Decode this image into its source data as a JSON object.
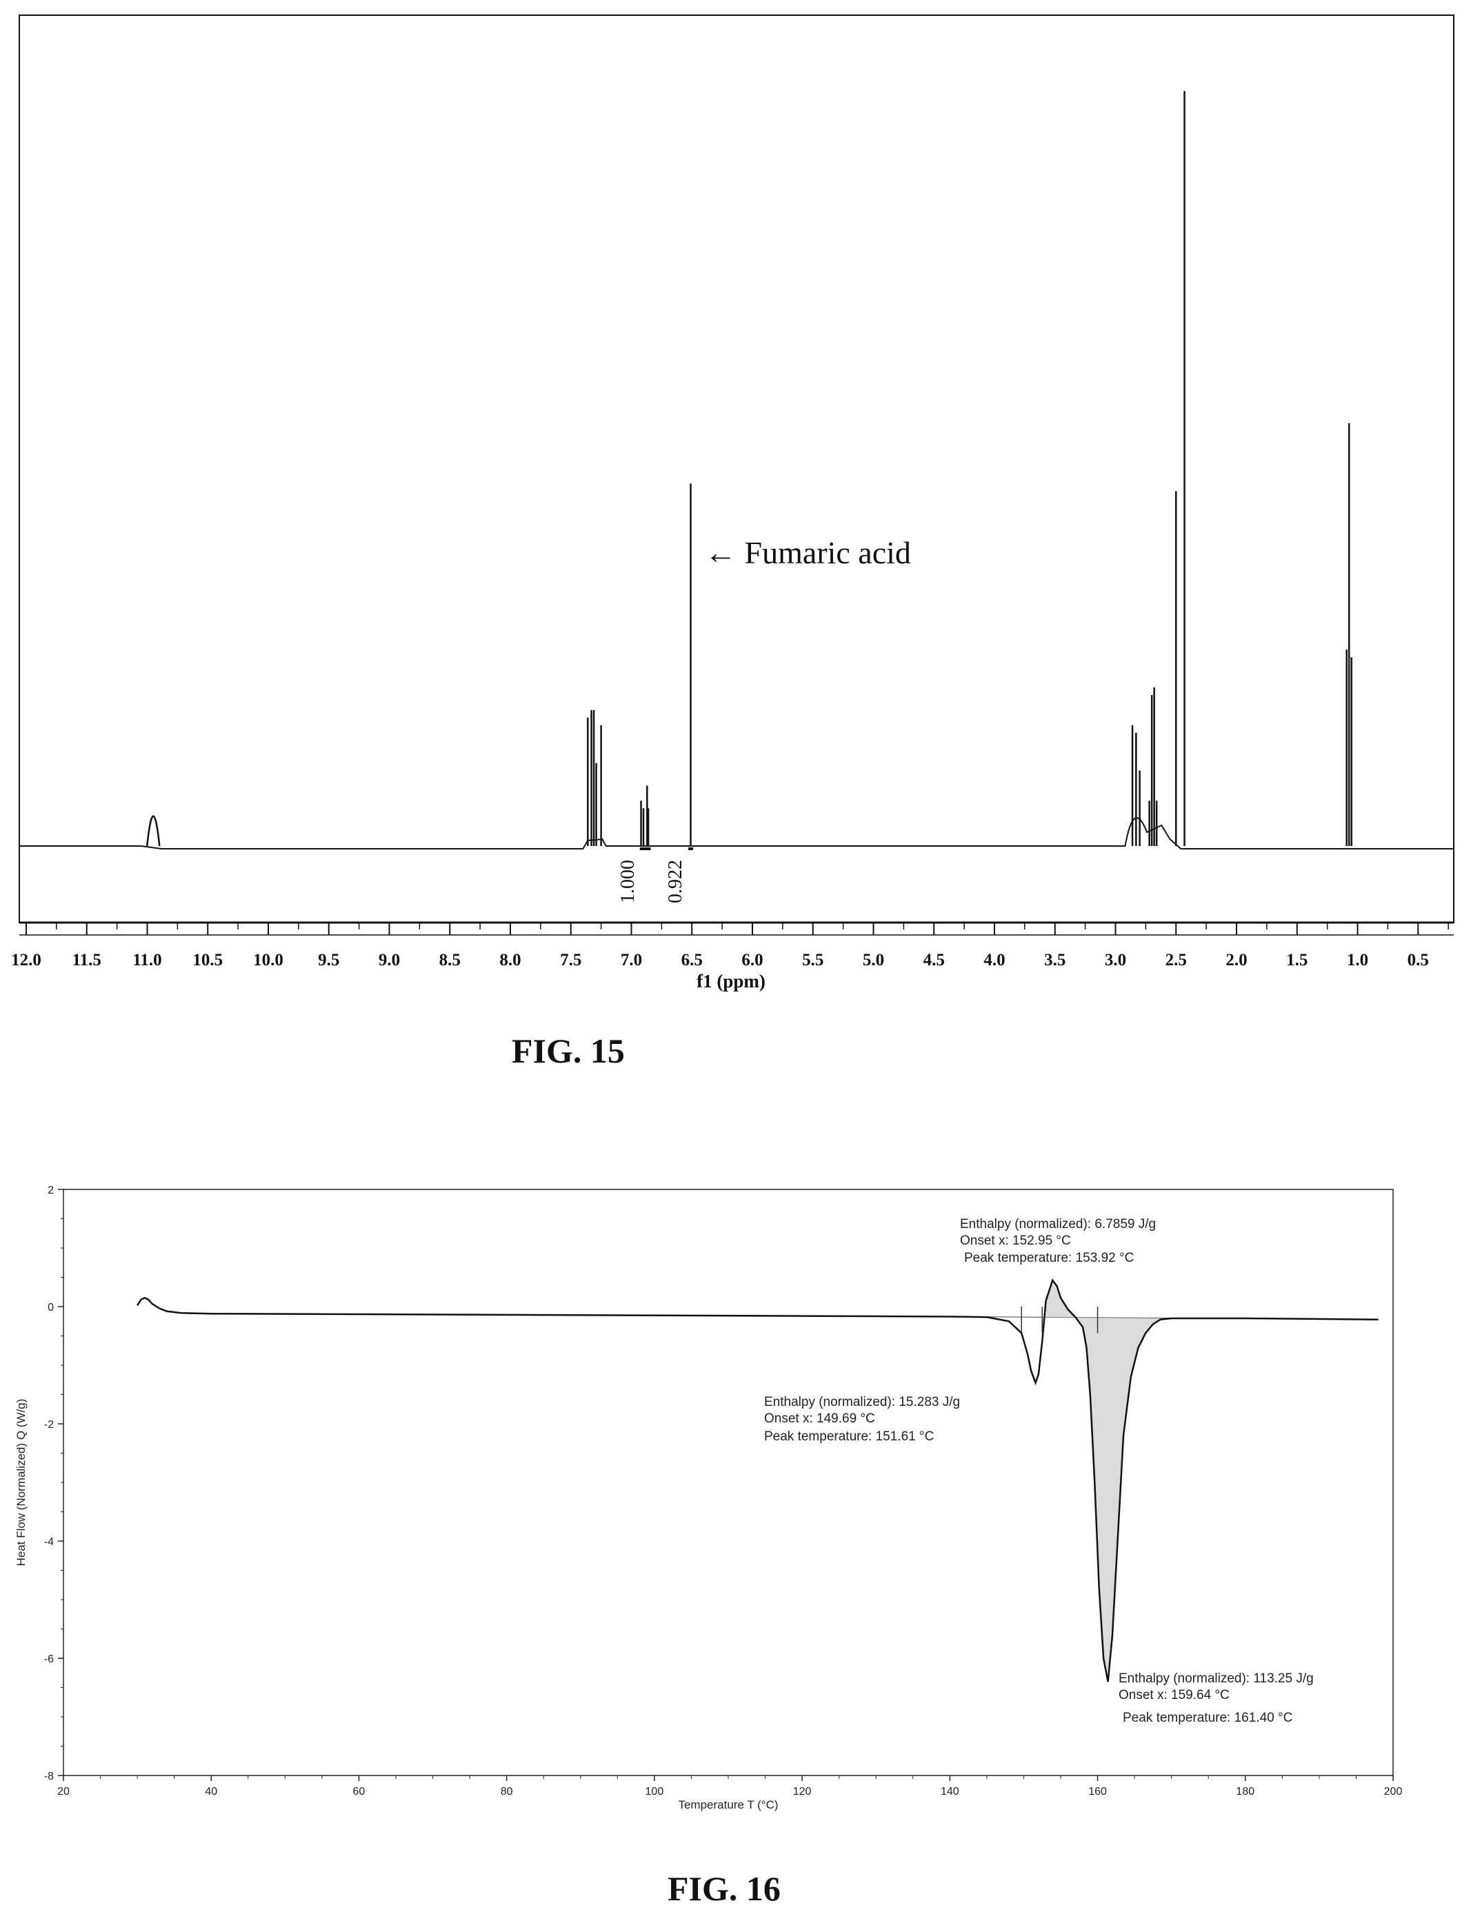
{
  "figures": [
    {
      "caption": "FIG. 15",
      "annotation": "← Fumaric acid",
      "integrals": [
        "1.000",
        "0.922"
      ]
    },
    {
      "caption": "FIG. 16",
      "annotations": [
        [
          "Enthalpy (normalized): 6.7859 J/g",
          "Onset x: 152.95 °C",
          "Peak temperature: 153.92 °C"
        ],
        [
          "Enthalpy (normalized): 15.283 J/g",
          "Onset x: 149.69 °C",
          "Peak temperature: 151.61 °C"
        ],
        [
          "Enthalpy (normalized): 113.25 J/g",
          "Onset x: 159.64 °C",
          "Peak temperature: 161.40 °C"
        ]
      ]
    }
  ],
  "chart_data": [
    {
      "type": "line",
      "title": "",
      "xlabel": "f1 (ppm)",
      "ylabel": "",
      "xlim": [
        12.0,
        0.0
      ],
      "x_reversed": true,
      "xticks": [
        "12.0",
        "11.5",
        "11.0",
        "10.5",
        "10.0",
        "9.5",
        "9.0",
        "8.5",
        "8.0",
        "7.5",
        "7.0",
        "6.5",
        "6.0",
        "5.5",
        "5.0",
        "4.5",
        "4.0",
        "3.5",
        "3.0",
        "2.5",
        "2.0",
        "1.5",
        "1.0",
        "0.5"
      ],
      "ylim": [
        0,
        1.0
      ],
      "grid": false,
      "series": [
        {
          "peaks": [
            {
              "x": 10.95,
              "y": 0.07
            },
            {
              "x": 7.36,
              "y": 0.17
            },
            {
              "x": 7.33,
              "y": 0.18
            },
            {
              "x": 7.31,
              "y": 0.18
            },
            {
              "x": 7.29,
              "y": 0.11
            },
            {
              "x": 7.25,
              "y": 0.16
            },
            {
              "x": 6.92,
              "y": 0.06
            },
            {
              "x": 6.9,
              "y": 0.05
            },
            {
              "x": 6.87,
              "y": 0.08
            },
            {
              "x": 6.86,
              "y": 0.05
            },
            {
              "x": 6.51,
              "y": 0.48
            },
            {
              "x": 2.86,
              "y": 0.16
            },
            {
              "x": 2.83,
              "y": 0.15
            },
            {
              "x": 2.8,
              "y": 0.1
            },
            {
              "x": 2.72,
              "y": 0.06
            },
            {
              "x": 2.7,
              "y": 0.2
            },
            {
              "x": 2.68,
              "y": 0.21
            },
            {
              "x": 2.66,
              "y": 0.06
            },
            {
              "x": 2.5,
              "y": 0.47
            },
            {
              "x": 2.43,
              "y": 1.0
            },
            {
              "x": 1.09,
              "y": 0.26
            },
            {
              "x": 1.07,
              "y": 0.56
            },
            {
              "x": 1.05,
              "y": 0.25
            }
          ]
        }
      ]
    },
    {
      "type": "line",
      "title": "",
      "xlabel": "Temperature T (°C)",
      "ylabel": "Heat Flow (Normalized) Q (W/g)",
      "xlim": [
        20,
        200
      ],
      "ylim": [
        -8,
        2
      ],
      "xticks": [
        20,
        40,
        60,
        80,
        100,
        120,
        140,
        160,
        180,
        200
      ],
      "yticks": [
        2,
        0,
        -2,
        -4,
        -6,
        -8
      ],
      "grid": false,
      "series": [
        {
          "x": [
            30,
            30.5,
            31,
            31.5,
            32,
            33,
            34,
            36,
            40,
            60,
            80,
            100,
            120,
            140,
            145,
            148,
            149.7,
            150.5,
            151,
            151.6,
            152,
            152.5,
            153,
            153.9,
            154.5,
            155,
            156,
            157,
            158,
            158.5,
            159,
            159.6,
            160.2,
            160.8,
            161.4,
            162,
            162.8,
            163.5,
            164.5,
            165.5,
            166.5,
            167.5,
            168.5,
            170,
            180,
            198
          ],
          "y": [
            0.02,
            0.12,
            0.15,
            0.12,
            0.05,
            -0.03,
            -0.08,
            -0.11,
            -0.12,
            -0.13,
            -0.14,
            -0.15,
            -0.16,
            -0.17,
            -0.18,
            -0.25,
            -0.45,
            -0.8,
            -1.1,
            -1.3,
            -1.15,
            -0.6,
            0.1,
            0.45,
            0.35,
            0.15,
            -0.05,
            -0.18,
            -0.35,
            -0.7,
            -1.5,
            -3.0,
            -4.8,
            -6.0,
            -6.4,
            -5.6,
            -3.8,
            -2.2,
            -1.2,
            -0.7,
            -0.45,
            -0.3,
            -0.22,
            -0.2,
            -0.2,
            -0.22
          ]
        }
      ]
    }
  ]
}
